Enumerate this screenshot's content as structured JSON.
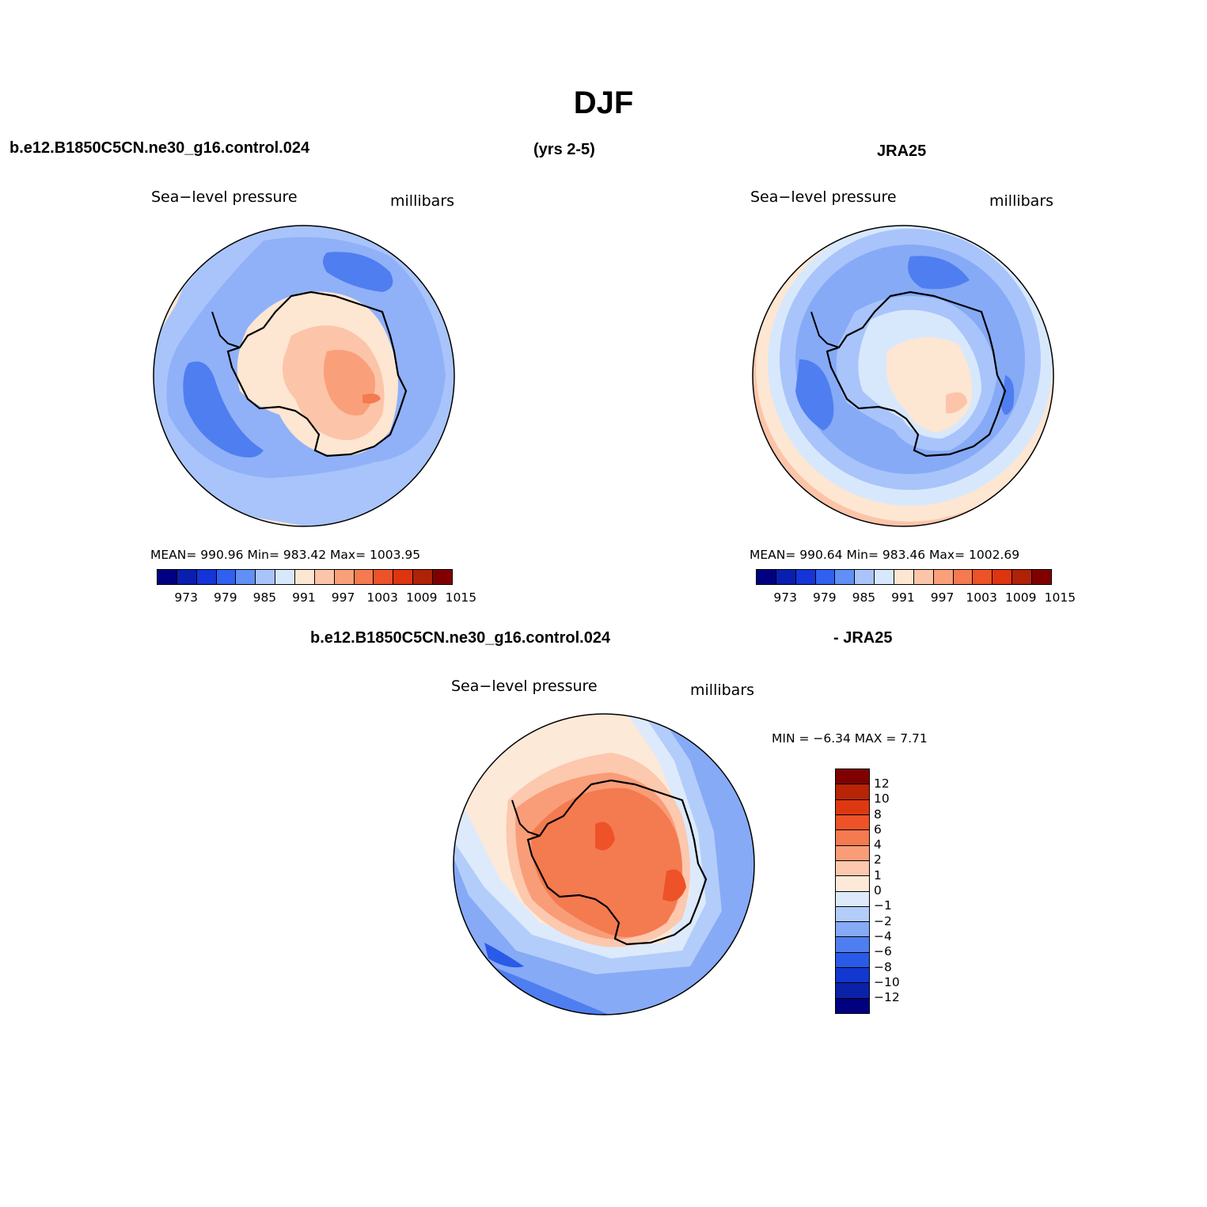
{
  "title": "DJF",
  "header": {
    "case_name": "b.e12.B1850C5CN.ne30_g16.control.024",
    "years": "(yrs 2-5)",
    "obs_name": "JRA25",
    "diff_left": "b.e12.B1850C5CN.ne30_g16.control.024",
    "diff_right": "- JRA25"
  },
  "panels": {
    "model": {
      "variable": "Sea−level pressure",
      "units": "millibars",
      "stats": "MEAN= 990.96   Min= 983.42   Max= 1003.95"
    },
    "obs": {
      "variable": "Sea−level pressure",
      "units": "millibars",
      "stats": "MEAN= 990.64   Min= 983.46   Max= 1002.69"
    },
    "diff": {
      "variable": "Sea−level pressure",
      "units": "millibars",
      "stats": "MIN =   −6.34  MAX =    7.71"
    }
  },
  "colorbars": {
    "abs_labels": [
      "973",
      "979",
      "985",
      "991",
      "997",
      "1003",
      "1009",
      "1015"
    ],
    "abs_colors": [
      "#000080",
      "#0a1fb0",
      "#1535d8",
      "#3060f0",
      "#6090f5",
      "#a8c4fa",
      "#d8e8fc",
      "#fde6d2",
      "#fcc4a8",
      "#f9a07a",
      "#f47a50",
      "#ee5228",
      "#de3510",
      "#b02208",
      "#800000"
    ],
    "diff_labels": [
      "12",
      "10",
      "8",
      "6",
      "4",
      "2",
      "1",
      "0",
      "−1",
      "−2",
      "−4",
      "−6",
      "−8",
      "−10",
      "−12"
    ],
    "diff_colors": [
      "#800000",
      "#b82405",
      "#de3812",
      "#ee5228",
      "#f47a50",
      "#f89d78",
      "#fcc8ae",
      "#fde9d8",
      "#dceafc",
      "#b3cdfa",
      "#86aaf6",
      "#4f7ef0",
      "#2a5ae8",
      "#1238d0",
      "#0b22a8",
      "#000080"
    ]
  }
}
